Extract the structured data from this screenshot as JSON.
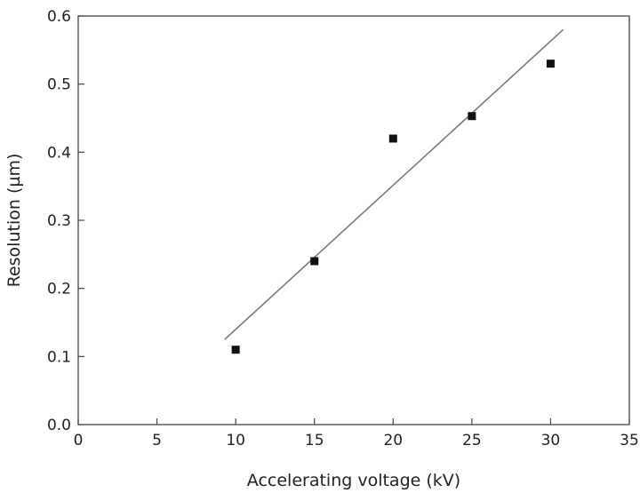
{
  "chart_data": {
    "type": "scatter",
    "xlabel": "Accelerating voltage (kV)",
    "ylabel": "Resolution (µm)",
    "xlim": [
      0,
      35
    ],
    "ylim": [
      0,
      0.6
    ],
    "xticks": [
      "0",
      "5",
      "10",
      "15",
      "20",
      "25",
      "30",
      "35"
    ],
    "yticks": [
      "0.0",
      "0.1",
      "0.2",
      "0.3",
      "0.4",
      "0.5",
      "0.6"
    ],
    "grid": false,
    "series": [
      {
        "marker": "square",
        "color": "#111111",
        "x": [
          10,
          15,
          20,
          25,
          30
        ],
        "y": [
          0.11,
          0.24,
          0.42,
          0.453,
          0.53
        ]
      }
    ],
    "fit_line": {
      "color": "#7a7a7a",
      "x": [
        9.3,
        30.8
      ],
      "y": [
        0.125,
        0.58
      ]
    }
  }
}
